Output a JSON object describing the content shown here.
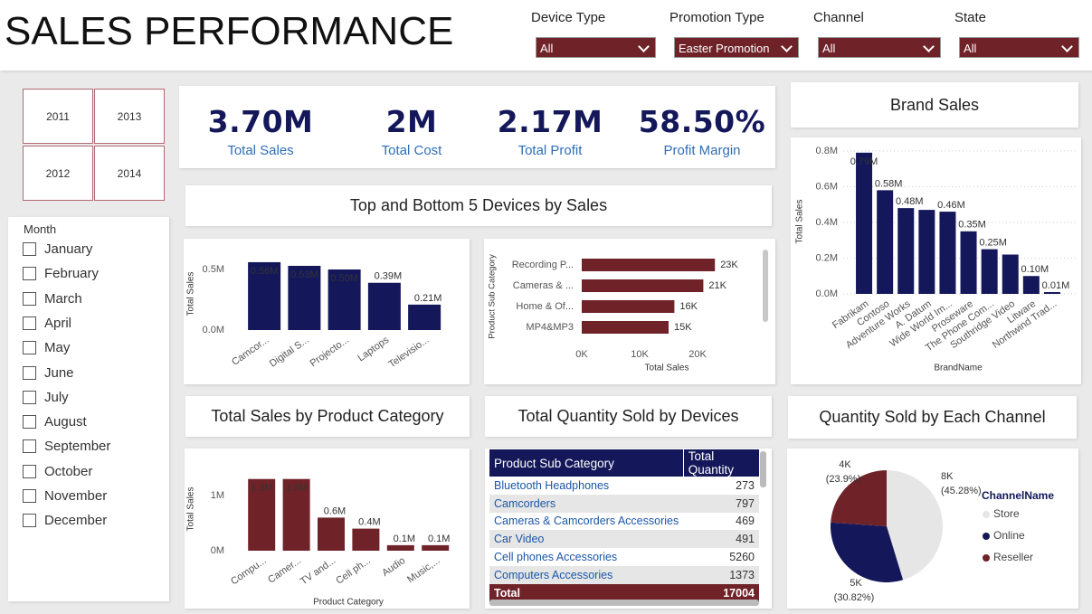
{
  "header": {
    "title": "SALES PERFORMANCE"
  },
  "filters": [
    {
      "label": "Device Type",
      "value": "All"
    },
    {
      "label": "Promotion Type",
      "value": "Easter Promotion"
    },
    {
      "label": "Channel",
      "value": "All"
    },
    {
      "label": "State",
      "value": "All"
    }
  ],
  "year_filter": [
    "2011",
    "2013",
    "2012",
    "2014"
  ],
  "month_filter": {
    "title": "Month",
    "items": [
      "January",
      "February",
      "March",
      "April",
      "May",
      "June",
      "July",
      "August",
      "September",
      "October",
      "November",
      "December"
    ]
  },
  "kpis": [
    {
      "value": "3.70M",
      "label": "Total Sales"
    },
    {
      "value": "2M",
      "label": "Total Cost"
    },
    {
      "value": "2.17M",
      "label": "Total Profit"
    },
    {
      "value": "58.50%",
      "label": "Profit Margin"
    }
  ],
  "chart_data": [
    {
      "type": "bar",
      "title": "Top and Bottom 5 Devices by Sales",
      "y_label": "Total Sales",
      "categories": [
        "Camcor...",
        "Digital S...",
        "Projecto...",
        "Laptops",
        "Televisio..."
      ],
      "values": [
        560000,
        530000,
        500000,
        390000,
        210000
      ],
      "value_labels": [
        "0.56M",
        "0.53M",
        "0.50M",
        "0.39M",
        "0.21M"
      ],
      "color": "#14185a",
      "ylim": [
        0,
        600000
      ],
      "yticks": [
        {
          "value": 0,
          "label": "0.0M"
        },
        {
          "value": 500000,
          "label": "0.5M"
        }
      ],
      "grid": false
    },
    {
      "type": "hbar",
      "x_label": "Total Sales",
      "y_label": "Product Sub Category",
      "categories": [
        "Recording P...",
        "Cameras & ...",
        "Home & Of...",
        "MP4&MP3"
      ],
      "values": [
        23000,
        21000,
        16000,
        15000
      ],
      "value_labels": [
        "23K",
        "21K",
        "16K",
        "15K"
      ],
      "color": "#6f2329",
      "xlim": [
        0,
        30000
      ],
      "xticks": [
        {
          "value": 0,
          "label": "0K"
        },
        {
          "value": 10000,
          "label": "10K"
        },
        {
          "value": 20000,
          "label": "20K"
        }
      ]
    },
    {
      "type": "bar",
      "title": "Brand Sales",
      "y_label": "Total Sales",
      "x_label": "BrandName",
      "categories": [
        "Fabrikam",
        "Contoso",
        "Adventure Works",
        "A. Datum",
        "Wide World Im...",
        "Proseware",
        "The Phone Com...",
        "Southridge Video",
        "Litware",
        "Northwind Trad..."
      ],
      "values": [
        790000,
        580000,
        480000,
        470000,
        460000,
        350000,
        250000,
        220000,
        100000,
        10000
      ],
      "value_labels": [
        "0.79M",
        "0.58M",
        "0.48M",
        null,
        "0.46M",
        "0.35M",
        "0.25M",
        null,
        "0.10M",
        "0.01M"
      ],
      "color": "#14185a",
      "ylim": [
        0,
        850000
      ],
      "yticks": [
        {
          "value": 0,
          "label": "0.0M"
        },
        {
          "value": 200000,
          "label": "0.2M"
        },
        {
          "value": 400000,
          "label": "0.4M"
        },
        {
          "value": 600000,
          "label": "0.6M"
        },
        {
          "value": 800000,
          "label": "0.8M"
        }
      ],
      "grid": true
    },
    {
      "type": "bar",
      "title": "Total Sales by Product Category",
      "y_label": "Total Sales",
      "x_label": "Product Category",
      "categories": [
        "Compu...",
        "Camer...",
        "TV and...",
        "Cell ph...",
        "Audio",
        "Music,..."
      ],
      "values": [
        1300000,
        1300000,
        600000,
        400000,
        100000,
        100000
      ],
      "value_labels": [
        "1.3M",
        "1.3M",
        "0.6M",
        "0.4M",
        "0.1M",
        "0.1M"
      ],
      "color": "#6f2329",
      "ylim": [
        0,
        1500000
      ],
      "yticks": [
        {
          "value": 0,
          "label": "0M"
        },
        {
          "value": 1000000,
          "label": "1M"
        }
      ],
      "grid": false
    },
    {
      "type": "pie",
      "title": "Quantity Sold by Each Channel",
      "legend_title": "ChannelName",
      "categories": [
        "Store",
        "Online",
        "Reseller"
      ],
      "values": [
        7700,
        5241,
        4064
      ],
      "value_labels": [
        "8K",
        "5K",
        "4K"
      ],
      "percent_labels": [
        "(45.28%)",
        "(30.82%)",
        "(23.9%)"
      ],
      "colors": [
        "#e6e6e6",
        "#14185a",
        "#6f2329"
      ],
      "legend": "right"
    }
  ],
  "table": {
    "title": "Total Quantity Sold by Devices",
    "columns": [
      "Product Sub Category",
      "Total Quantity"
    ],
    "rows": [
      [
        "Bluetooth Headphones",
        273
      ],
      [
        "Camcorders",
        797
      ],
      [
        "Cameras & Camcorders Accessories",
        469
      ],
      [
        "Car Video",
        491
      ],
      [
        "Cell phones Accessories",
        5260
      ],
      [
        "Computers Accessories",
        1373
      ]
    ],
    "total": [
      "Total",
      17004
    ]
  }
}
